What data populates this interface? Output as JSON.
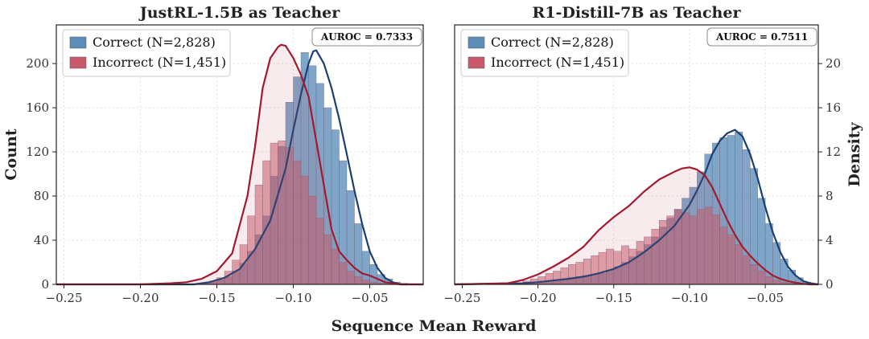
{
  "xlabel": "Sequence Mean Reward",
  "colors": {
    "correct": "#5b8db8",
    "incorrect": "#c8596a",
    "correct_line": "#1b3f73",
    "incorrect_line": "#a11a30"
  },
  "chart_data": [
    {
      "type": "histogram",
      "title": "JustRL-1.5B as Teacher",
      "ylabel": "Count",
      "ylabel_position": "left",
      "xlim": [
        -0.255,
        -0.015
      ],
      "ylim": [
        0,
        235
      ],
      "xticks": [
        -0.25,
        -0.2,
        -0.15,
        -0.1,
        -0.05
      ],
      "xtick_labels": [
        "−0.25",
        "−0.20",
        "−0.15",
        "−0.10",
        "−0.05"
      ],
      "yticks": [
        0,
        40,
        80,
        120,
        160,
        200
      ],
      "ytick_labels": [
        "0",
        "40",
        "80",
        "120",
        "160",
        "200"
      ],
      "grid": true,
      "legend_position": "top-left",
      "annotation": "AUROC = 0.7333",
      "kde_peak_counts": {
        "Correct (N=2,828)": 212,
        "Incorrect (N=1,451)": 218
      },
      "series": [
        {
          "name": "Correct (N=2,828)",
          "color": "#5b8db8",
          "x": [
            -0.1575,
            -0.1525,
            -0.1475,
            -0.1425,
            -0.1375,
            -0.1325,
            -0.1275,
            -0.1225,
            -0.1175,
            -0.1125,
            -0.1075,
            -0.1025,
            -0.0975,
            -0.0925,
            -0.0875,
            -0.0825,
            -0.0775,
            -0.0725,
            -0.0675,
            -0.0625,
            -0.0575,
            -0.0525,
            -0.0475,
            -0.0425,
            -0.0375,
            -0.0325,
            -0.0275
          ],
          "values": [
            1,
            2,
            4,
            7,
            12,
            19,
            30,
            45,
            62,
            98,
            125,
            165,
            188,
            210,
            198,
            182,
            160,
            140,
            112,
            85,
            55,
            30,
            18,
            9,
            5,
            2,
            1
          ],
          "kde_x": [
            -0.165,
            -0.155,
            -0.145,
            -0.135,
            -0.125,
            -0.115,
            -0.105,
            -0.1,
            -0.095,
            -0.09,
            -0.087,
            -0.085,
            -0.08,
            -0.075,
            -0.07,
            -0.065,
            -0.06,
            -0.055,
            -0.05,
            -0.045,
            -0.04,
            -0.035,
            -0.03,
            -0.025
          ],
          "kde_counts": [
            0,
            2,
            6,
            14,
            32,
            58,
            105,
            140,
            172,
            200,
            211,
            212,
            200,
            178,
            150,
            118,
            85,
            55,
            30,
            15,
            6,
            2,
            0,
            0
          ]
        },
        {
          "name": "Incorrect (N=1,451)",
          "color": "#c8596a",
          "x": [
            -0.1575,
            -0.1525,
            -0.1475,
            -0.1425,
            -0.1375,
            -0.1325,
            -0.1275,
            -0.1225,
            -0.1175,
            -0.1125,
            -0.1075,
            -0.1025,
            -0.0975,
            -0.0925,
            -0.0875,
            -0.0825,
            -0.0775,
            -0.0725,
            -0.0675,
            -0.0625,
            -0.0575,
            -0.0525,
            -0.0475,
            -0.0425
          ],
          "values": [
            1,
            3,
            6,
            12,
            22,
            36,
            62,
            90,
            112,
            128,
            130,
            124,
            112,
            98,
            80,
            60,
            45,
            32,
            20,
            12,
            7,
            4,
            2,
            1
          ],
          "kde_x": [
            -0.2,
            -0.18,
            -0.17,
            -0.16,
            -0.15,
            -0.14,
            -0.13,
            -0.125,
            -0.12,
            -0.115,
            -0.11,
            -0.108,
            -0.105,
            -0.1,
            -0.095,
            -0.09,
            -0.085,
            -0.08,
            -0.075,
            -0.07,
            -0.065,
            -0.06,
            -0.055,
            -0.05,
            -0.045,
            -0.04,
            -0.035,
            -0.03,
            -0.025
          ],
          "kde_counts": [
            0,
            1,
            2,
            5,
            12,
            28,
            80,
            125,
            178,
            205,
            215,
            217,
            216,
            205,
            190,
            170,
            130,
            90,
            50,
            30,
            22,
            15,
            10,
            8,
            5,
            2,
            1,
            0,
            0
          ]
        }
      ]
    },
    {
      "type": "histogram",
      "title": "R1-Distill-7B as Teacher",
      "ylabel": "Density",
      "ylabel_position": "right",
      "xlim": [
        -0.255,
        -0.015
      ],
      "ylim": [
        0,
        23.5
      ],
      "xticks": [
        -0.25,
        -0.2,
        -0.15,
        -0.1,
        -0.05
      ],
      "xtick_labels": [
        "−0.25",
        "−0.20",
        "−0.15",
        "−0.10",
        "−0.05"
      ],
      "yticks": [
        0,
        4,
        8,
        12,
        16,
        20
      ],
      "ytick_labels": [
        "0",
        "4",
        "8",
        "12",
        "16",
        "20"
      ],
      "grid": true,
      "legend_position": "top-left",
      "annotation": "AUROC = 0.7511",
      "series": [
        {
          "name": "Correct (N=2,828)",
          "color": "#5b8db8",
          "x": [
            -0.2075,
            -0.2025,
            -0.1975,
            -0.1925,
            -0.1875,
            -0.1825,
            -0.1775,
            -0.1725,
            -0.1675,
            -0.1625,
            -0.1575,
            -0.1525,
            -0.1475,
            -0.1425,
            -0.1375,
            -0.1325,
            -0.1275,
            -0.1225,
            -0.1175,
            -0.1125,
            -0.1075,
            -0.1025,
            -0.0975,
            -0.0925,
            -0.0875,
            -0.0825,
            -0.0775,
            -0.0725,
            -0.0675,
            -0.0625,
            -0.0575,
            -0.0525,
            -0.0475,
            -0.0425,
            -0.0375,
            -0.0325,
            -0.0275,
            -0.0225
          ],
          "values": [
            0.2,
            0.2,
            0.3,
            0.3,
            0.4,
            0.5,
            0.6,
            0.7,
            0.8,
            0.9,
            1.0,
            1.3,
            1.6,
            2.0,
            2.5,
            3.0,
            3.6,
            4.3,
            5.2,
            6.0,
            6.8,
            7.8,
            8.8,
            10.2,
            11.8,
            12.8,
            13.3,
            13.5,
            13.8,
            12.2,
            10.5,
            7.8,
            5.5,
            3.8,
            2.3,
            1.3,
            0.6,
            0.2
          ],
          "kde_x": [
            -0.21,
            -0.2,
            -0.19,
            -0.18,
            -0.17,
            -0.16,
            -0.15,
            -0.14,
            -0.13,
            -0.12,
            -0.11,
            -0.1,
            -0.095,
            -0.09,
            -0.085,
            -0.08,
            -0.075,
            -0.07,
            -0.065,
            -0.06,
            -0.055,
            -0.05,
            -0.045,
            -0.04,
            -0.035,
            -0.03,
            -0.025,
            -0.02
          ],
          "kde_density": [
            0.1,
            0.2,
            0.35,
            0.5,
            0.7,
            1.0,
            1.4,
            2.0,
            2.9,
            4.0,
            5.3,
            7.2,
            8.5,
            10.0,
            11.8,
            13.0,
            13.7,
            14.0,
            13.4,
            11.8,
            9.6,
            7.0,
            4.7,
            2.9,
            1.6,
            0.8,
            0.3,
            0.1
          ]
        },
        {
          "name": "Incorrect (N=1,451)",
          "color": "#c8596a",
          "x": [
            -0.2075,
            -0.2025,
            -0.1975,
            -0.1925,
            -0.1875,
            -0.1825,
            -0.1775,
            -0.1725,
            -0.1675,
            -0.1625,
            -0.1575,
            -0.1525,
            -0.1475,
            -0.1425,
            -0.1375,
            -0.1325,
            -0.1275,
            -0.1225,
            -0.1175,
            -0.1125,
            -0.1075,
            -0.1025,
            -0.0975,
            -0.0925,
            -0.0875,
            -0.0825,
            -0.0775,
            -0.0725,
            -0.0675,
            -0.0625,
            -0.0575,
            -0.0525,
            -0.0475,
            -0.0425,
            -0.0375,
            -0.0325
          ],
          "values": [
            0.3,
            0.5,
            0.7,
            1.0,
            1.2,
            1.5,
            1.8,
            2.0,
            2.3,
            2.6,
            2.9,
            3.2,
            3.0,
            3.5,
            3.2,
            3.9,
            4.3,
            5.0,
            5.8,
            6.2,
            6.8,
            6.5,
            6.2,
            6.8,
            7.0,
            6.3,
            5.2,
            4.5,
            3.6,
            2.6,
            1.8,
            1.2,
            0.7,
            0.4,
            0.2,
            0.1
          ],
          "kde_x": [
            -0.22,
            -0.21,
            -0.2,
            -0.19,
            -0.18,
            -0.17,
            -0.16,
            -0.15,
            -0.14,
            -0.13,
            -0.12,
            -0.11,
            -0.105,
            -0.1,
            -0.095,
            -0.09,
            -0.085,
            -0.08,
            -0.075,
            -0.07,
            -0.065,
            -0.06,
            -0.055,
            -0.05,
            -0.045,
            -0.04,
            -0.035,
            -0.03,
            -0.025,
            -0.02
          ],
          "kde_density": [
            0.1,
            0.4,
            0.9,
            1.6,
            2.4,
            3.4,
            4.9,
            6.1,
            7.1,
            8.4,
            9.5,
            10.2,
            10.5,
            10.6,
            10.4,
            9.9,
            8.8,
            7.3,
            5.8,
            4.5,
            3.4,
            2.6,
            1.9,
            1.3,
            0.8,
            0.5,
            0.3,
            0.15,
            0.05,
            0
          ]
        }
      ]
    }
  ]
}
